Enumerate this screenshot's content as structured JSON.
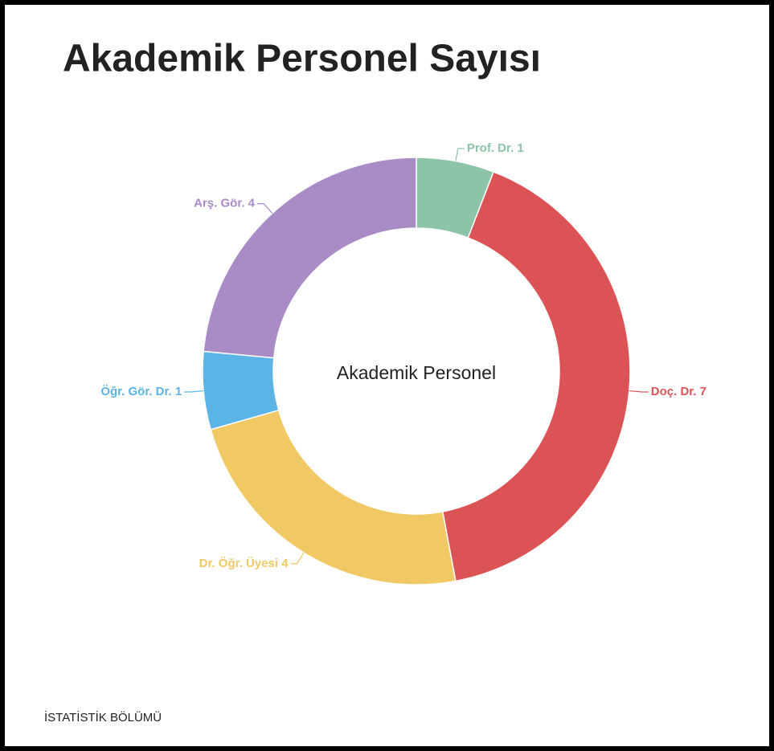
{
  "chart_data": {
    "type": "donut",
    "title": "Akademik Personel Sayısı",
    "center_label": "Akademik Personel",
    "footer": "İSTATİSTİK BÖLÜMÜ",
    "categories": [
      "Prof. Dr.",
      "Doç. Dr.",
      "Dr. Öğr. Üyesi",
      "Öğr. Gör. Dr.",
      "Arş. Gör."
    ],
    "values": [
      1,
      7,
      4,
      1,
      4
    ],
    "colors": [
      "#8dc3a7",
      "#dc5356",
      "#f0c964",
      "#5ab4e5",
      "#a98bc6"
    ]
  }
}
